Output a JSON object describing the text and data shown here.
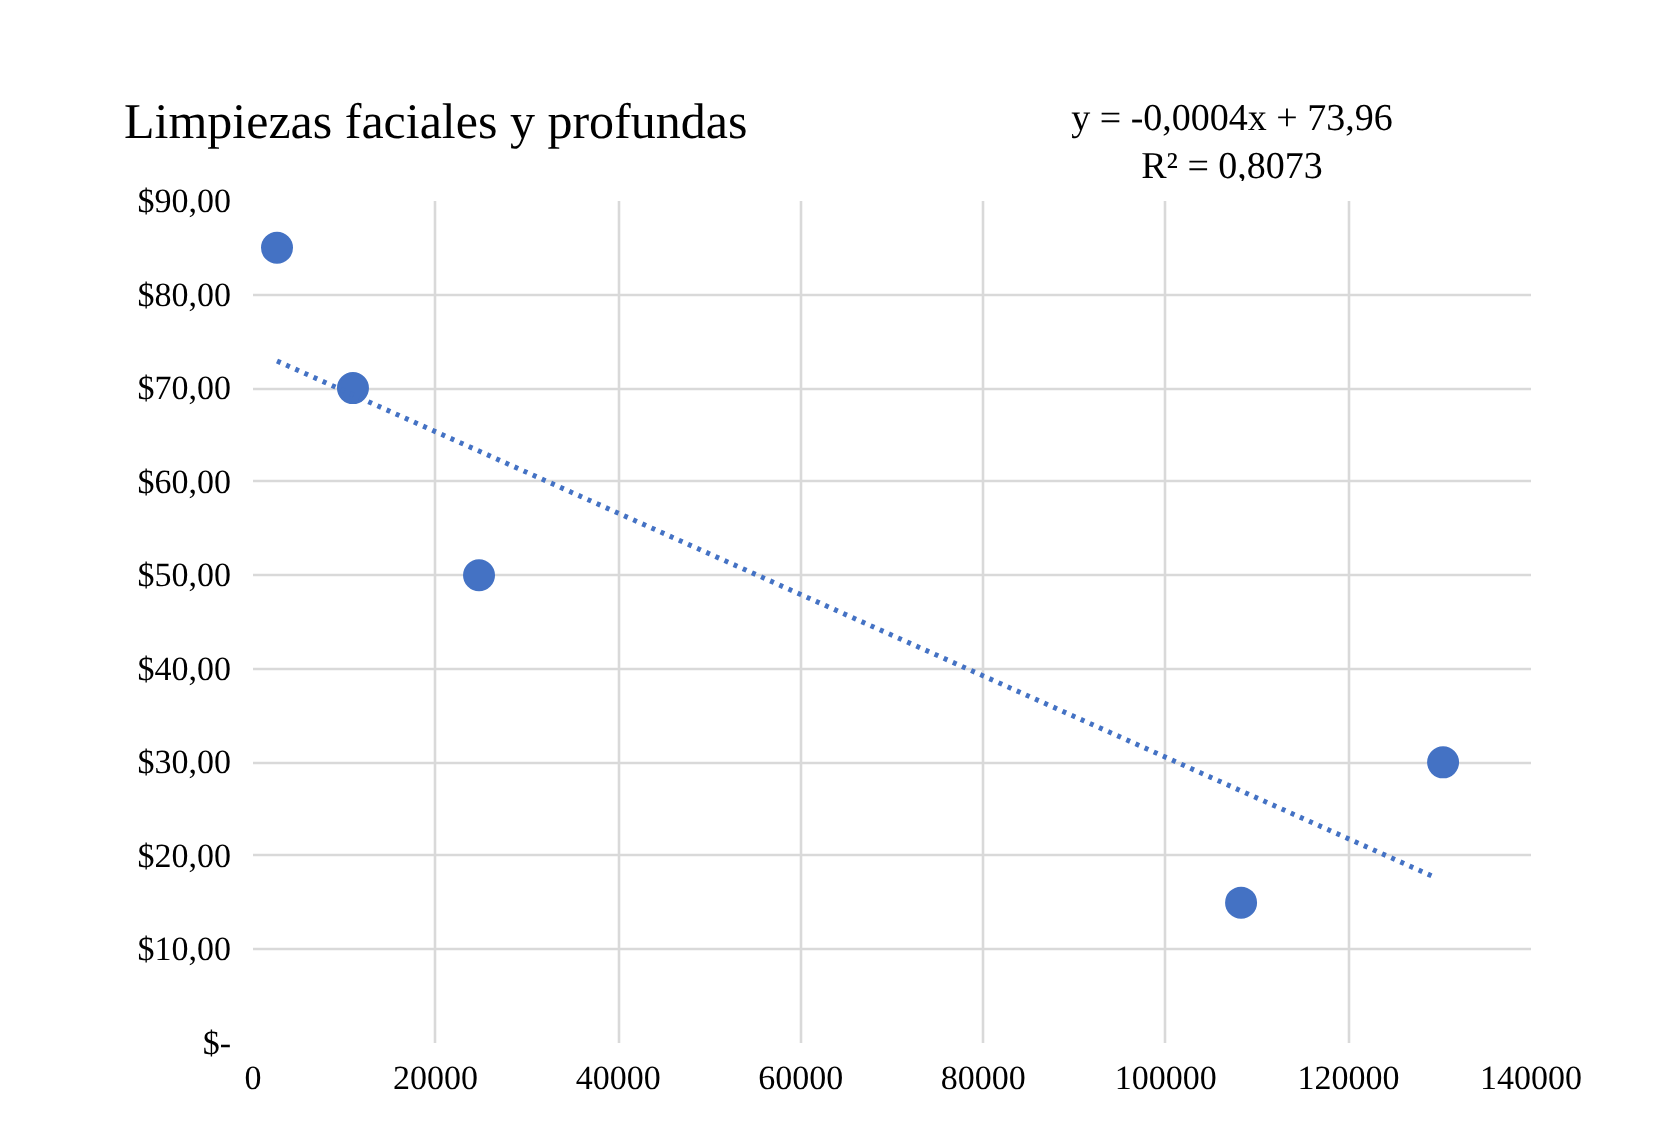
{
  "chart_data": {
    "type": "scatter",
    "title": "Limpiezas faciales y profundas",
    "annotations": [
      "y = -0,0004x + 73,96",
      "R² = 0,8073"
    ],
    "series": [
      {
        "color": "#4472c4",
        "marker": "circle",
        "x": [
          2630,
          10950,
          24760,
          108240,
          130370
        ],
        "values": [
          85,
          70,
          50,
          15,
          30
        ]
      },
      {
        "type": "line",
        "color": "#4472c4",
        "marker": "none",
        "line_style": "dotted",
        "x": [
          2630,
          129500
        ],
        "values": [
          72.9,
          17.7
        ]
      }
    ],
    "xlim": [
      0,
      140000
    ],
    "xticks": [
      0,
      20000,
      40000,
      60000,
      80000,
      100000,
      120000,
      140000
    ],
    "ylim": [
      0,
      90
    ],
    "yticks": [
      {
        "value": 0,
        "label": "$-"
      },
      {
        "value": 10,
        "label": "$10,00"
      },
      {
        "value": 20,
        "label": "$20,00"
      },
      {
        "value": 30,
        "label": "$30,00"
      },
      {
        "value": 40,
        "label": "$40,00"
      },
      {
        "value": 50,
        "label": "$50,00"
      },
      {
        "value": 60,
        "label": "$60,00"
      },
      {
        "value": 70,
        "label": "$70,00"
      },
      {
        "value": 80,
        "label": "$80,00"
      },
      {
        "value": 90,
        "label": "$90,00"
      }
    ],
    "grid": true
  }
}
